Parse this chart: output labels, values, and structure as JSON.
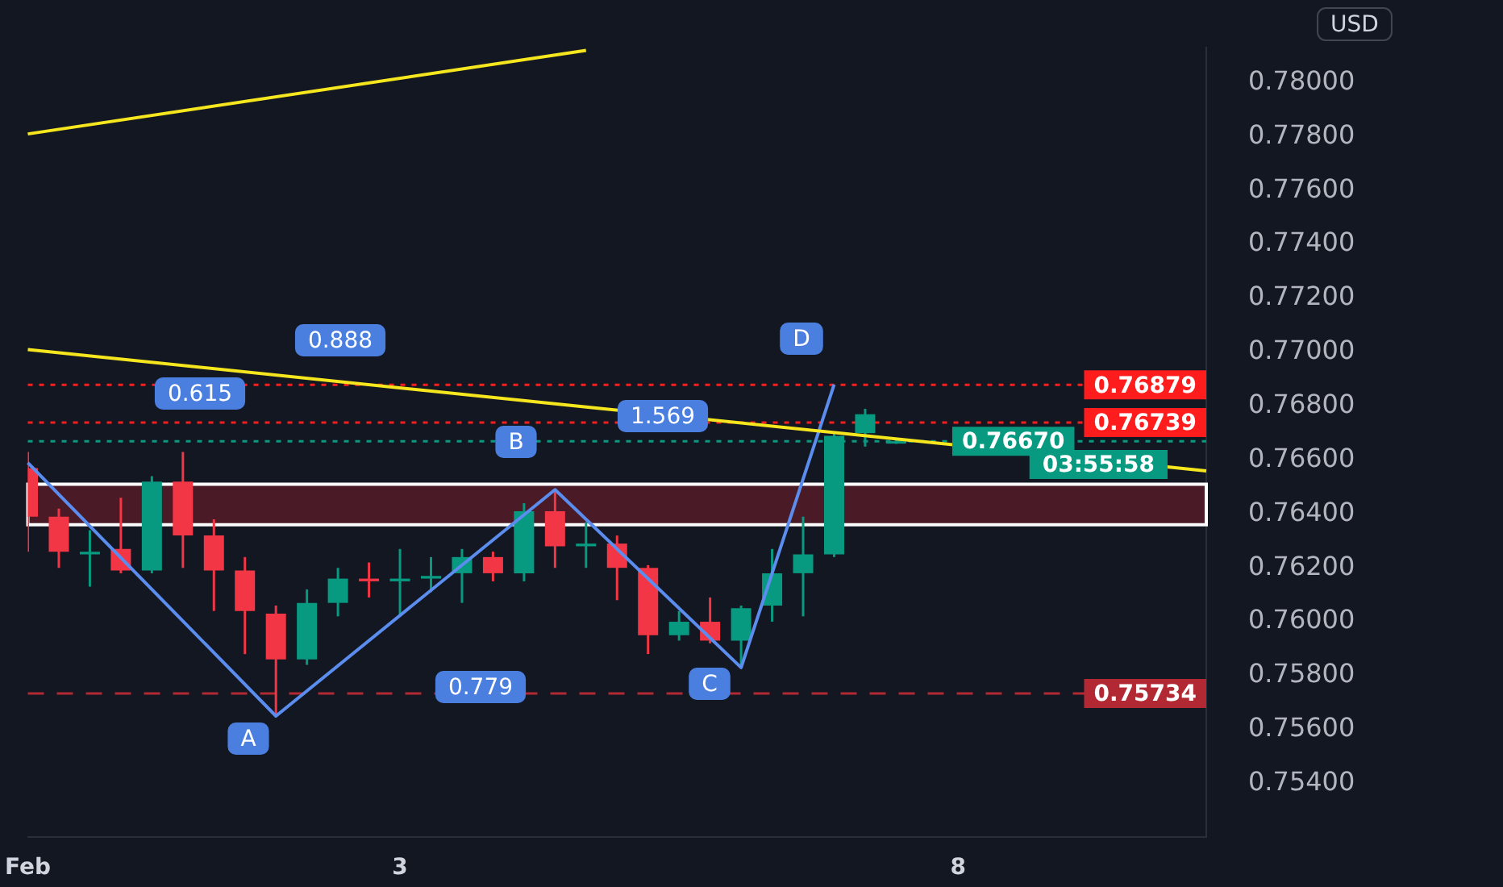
{
  "chart_data": {
    "type": "candlestick",
    "categories": [
      "Feb",
      null,
      null,
      null,
      null,
      null,
      null,
      null,
      null,
      null,
      null,
      null,
      "3",
      null,
      null,
      null,
      null,
      null,
      null,
      null,
      null,
      null,
      null,
      null,
      null,
      null,
      null,
      null,
      null,
      null,
      "8",
      null,
      null,
      null,
      null,
      null,
      null,
      null,
      null
    ],
    "ohlc": [
      [
        0.7657,
        0.7663,
        0.7626,
        0.7639
      ],
      [
        0.7639,
        0.7642,
        0.762,
        0.7626
      ],
      [
        0.7625,
        0.7634,
        0.7613,
        0.7626
      ],
      [
        0.7627,
        0.7646,
        0.7618,
        0.7619
      ],
      [
        0.7619,
        0.7654,
        0.7618,
        0.7652
      ],
      [
        0.7652,
        0.7663,
        0.762,
        0.7632
      ],
      [
        0.7632,
        0.7638,
        0.7604,
        0.7619
      ],
      [
        0.7619,
        0.7624,
        0.7588,
        0.7604
      ],
      [
        0.7603,
        0.7606,
        0.7565,
        0.7586
      ],
      [
        0.7586,
        0.7612,
        0.7584,
        0.7607
      ],
      [
        0.7607,
        0.762,
        0.7602,
        0.7616
      ],
      [
        0.7616,
        0.7622,
        0.7609,
        0.7615
      ],
      [
        0.7615,
        0.7627,
        0.7602,
        0.7616
      ],
      [
        0.7616,
        0.7624,
        0.7611,
        0.7617
      ],
      [
        0.7618,
        0.7627,
        0.7607,
        0.7624
      ],
      [
        0.7624,
        0.7626,
        0.7615,
        0.7618
      ],
      [
        0.7618,
        0.7644,
        0.7615,
        0.7641
      ],
      [
        0.7641,
        0.7649,
        0.762,
        0.7628
      ],
      [
        0.7628,
        0.7637,
        0.762,
        0.7629
      ],
      [
        0.7629,
        0.7632,
        0.7608,
        0.762
      ],
      [
        0.762,
        0.7621,
        0.7588,
        0.7595
      ],
      [
        0.7595,
        0.7604,
        0.7593,
        0.76
      ],
      [
        0.76,
        0.7609,
        0.7592,
        0.7593
      ],
      [
        0.7593,
        0.7606,
        0.7583,
        0.7605
      ],
      [
        0.7606,
        0.7627,
        0.76,
        0.7618
      ],
      [
        0.7618,
        0.7639,
        0.7602,
        0.7625
      ],
      [
        0.7625,
        0.767,
        0.7624,
        0.7669
      ],
      [
        0.767,
        0.7679,
        0.7665,
        0.7677
      ],
      [
        0.7667,
        0.7668,
        0.7666,
        0.7667
      ],
      null,
      null,
      null,
      null,
      null,
      null,
      null,
      null,
      null,
      null
    ],
    "colors": [
      "#f23645",
      "#f23645",
      "#089981",
      "#f23645",
      "#089981",
      "#f23645",
      "#f23645",
      "#f23645",
      "#f23645",
      "#089981",
      "#089981",
      "#f23645",
      "#089981",
      "#089981",
      "#089981",
      "#f23645",
      "#089981",
      "#f23645",
      "#089981",
      "#f23645",
      "#f23645",
      "#089981",
      "#f23645",
      "#089981",
      "#089981",
      "#089981",
      "#089981",
      "#089981",
      "#089981",
      null,
      null,
      null,
      null,
      null,
      null,
      null,
      null,
      null,
      null
    ],
    "series": [
      {
        "type": "line",
        "color": "#f5e61e",
        "values": [
          0.7781,
          null,
          null,
          null,
          null,
          null,
          null,
          null,
          null,
          null,
          null,
          null,
          null,
          null,
          null,
          null,
          null,
          null,
          0.7812,
          null,
          null,
          null,
          null,
          null,
          null,
          null,
          null,
          null,
          null,
          null,
          null,
          null,
          null,
          null,
          null,
          null,
          null,
          null,
          null
        ]
      },
      {
        "type": "line",
        "color": "#f5e61e",
        "values": [
          0.7701,
          null,
          null,
          null,
          null,
          null,
          null,
          null,
          null,
          null,
          null,
          null,
          null,
          null,
          null,
          null,
          null,
          null,
          null,
          null,
          null,
          null,
          null,
          null,
          null,
          null,
          null,
          null,
          null,
          null,
          null,
          null,
          null,
          null,
          null,
          null,
          null,
          null,
          0.7656
        ]
      },
      {
        "type": "line",
        "color": "#5b8def",
        "values": [
          0.7659,
          null,
          null,
          null,
          null,
          null,
          null,
          null,
          0.7565,
          null,
          null,
          null,
          null,
          null,
          null,
          null,
          null,
          0.7649,
          null,
          null,
          null,
          null,
          null,
          0.7583,
          null,
          null,
          0.7688,
          null,
          null,
          null,
          null,
          null,
          null,
          null,
          null,
          null,
          null,
          null,
          null
        ]
      }
    ],
    "ylim": [
      0.752,
      0.7813
    ],
    "yticks": [
      {
        "value": 0.754,
        "label": "0.75400"
      },
      {
        "value": 0.756,
        "label": "0.75600"
      },
      {
        "value": 0.758,
        "label": "0.75800"
      },
      {
        "value": 0.76,
        "label": "0.76000"
      },
      {
        "value": 0.762,
        "label": "0.76200"
      },
      {
        "value": 0.764,
        "label": "0.76400"
      },
      {
        "value": 0.766,
        "label": "0.76600"
      },
      {
        "value": 0.768,
        "label": "0.76800"
      },
      {
        "value": 0.77,
        "label": "0.77000"
      },
      {
        "value": 0.772,
        "label": "0.77200"
      },
      {
        "value": 0.774,
        "label": "0.77400"
      },
      {
        "value": 0.776,
        "label": "0.77600"
      },
      {
        "value": 0.778,
        "label": "0.77800"
      },
      {
        "value": 0.78,
        "label": "0.78000"
      }
    ],
    "ref_lines": [
      {
        "axis": "y",
        "value": 0.76879,
        "label": "0.76879",
        "color": "#ff1c1c",
        "line_style": "dotted"
      },
      {
        "axis": "y",
        "value": 0.76739,
        "label": "0.76739",
        "color": "#ff1c1c",
        "line_style": "dotted"
      },
      {
        "axis": "y",
        "value": 0.7667,
        "label": "0.76670",
        "color": "#089981",
        "line_style": "dotted"
      },
      {
        "axis": "y",
        "value": 0.75734,
        "label": "0.75734",
        "color": "#b22833",
        "line_style": "dashed"
      }
    ],
    "bands": [
      {
        "axis": "y",
        "from": 0.7636,
        "to": 0.7651,
        "color": "#4a1a26"
      }
    ],
    "annotations": [
      "0.888",
      "0.615",
      "1.569",
      "0.779",
      "A",
      "B",
      "C",
      "D",
      "03:55:58",
      "USD"
    ],
    "grid": false,
    "legend": false
  }
}
